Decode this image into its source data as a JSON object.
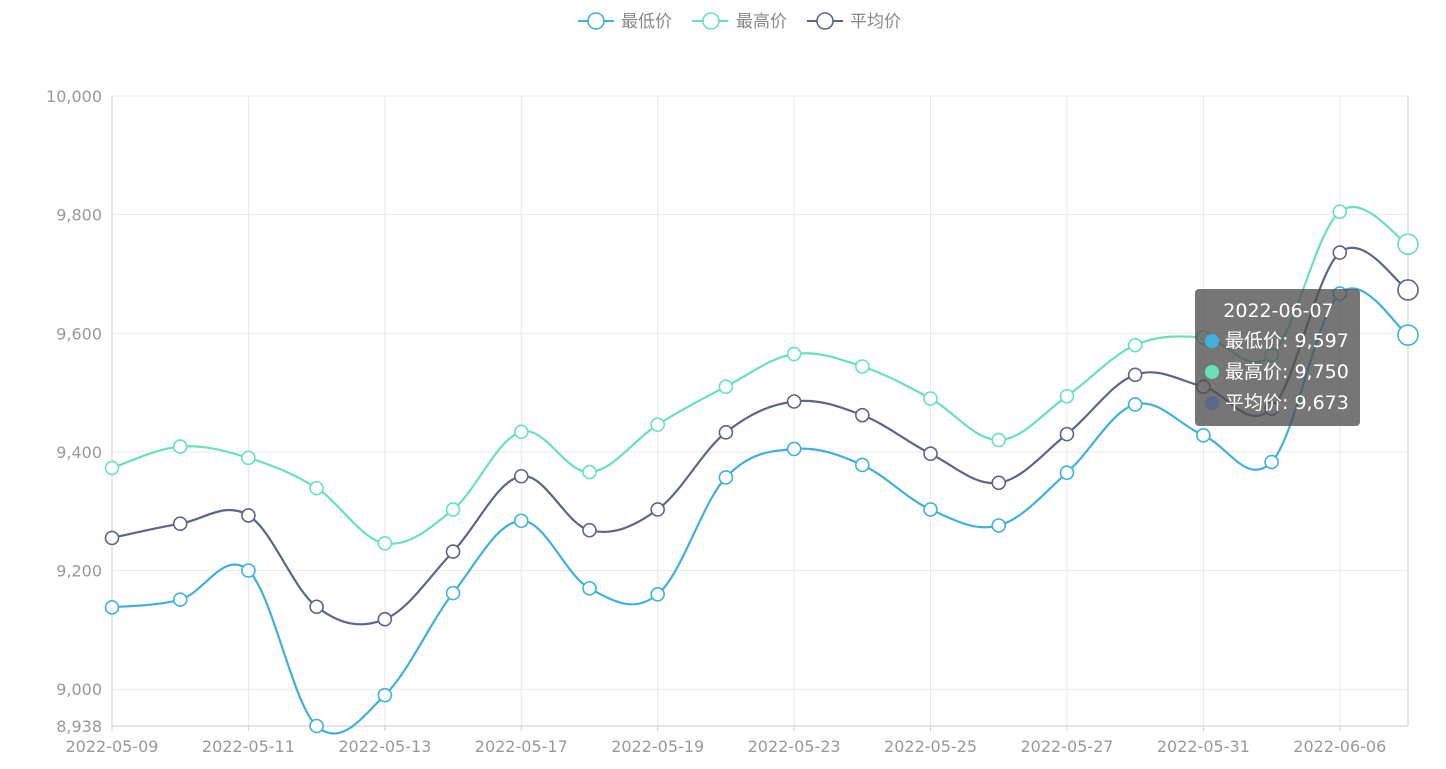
{
  "chart_data": {
    "type": "line",
    "smooth": true,
    "x": [
      "2022-05-09",
      "2022-05-10",
      "2022-05-11",
      "2022-05-12",
      "2022-05-13",
      "2022-05-16",
      "2022-05-17",
      "2022-05-18",
      "2022-05-19",
      "2022-05-20",
      "2022-05-23",
      "2022-05-24",
      "2022-05-25",
      "2022-05-26",
      "2022-05-27",
      "2022-05-30",
      "2022-05-31",
      "2022-06-01",
      "2022-06-06",
      "2022-06-07"
    ],
    "x_tick_labels": [
      "2022-05-09",
      "2022-05-11",
      "2022-05-13",
      "2022-05-17",
      "2022-05-19",
      "2022-05-23",
      "2022-05-25",
      "2022-05-27",
      "2022-05-31",
      "2022-06-06"
    ],
    "ylim": [
      8938,
      10000
    ],
    "y_ticks": [
      {
        "value": 8938,
        "label": "8,938"
      },
      {
        "value": 9000,
        "label": "9,000"
      },
      {
        "value": 9200,
        "label": "9,200"
      },
      {
        "value": 9400,
        "label": "9,400"
      },
      {
        "value": 9600,
        "label": "9,600"
      },
      {
        "value": 9800,
        "label": "9,800"
      },
      {
        "value": 10000,
        "label": "10,000"
      }
    ],
    "grid": true,
    "legend_position": "top-center",
    "series": [
      {
        "name": "最低价",
        "color": "#41b0dd",
        "values": [
          9138,
          9151,
          9200,
          8938,
          8990,
          9162,
          9284,
          9170,
          9160,
          9357,
          9405,
          9378,
          9303,
          9276,
          9365,
          9480,
          9428,
          9383,
          9667,
          9597
        ]
      },
      {
        "name": "最高价",
        "color": "#68e1bb",
        "values": [
          9373,
          9409,
          9390,
          9339,
          9246,
          9303,
          9434,
          9366,
          9446,
          9510,
          9565,
          9544,
          9490,
          9420,
          9494,
          9580,
          9593,
          9563,
          9805,
          9750
        ]
      },
      {
        "name": "平均价",
        "color": "#5b6688",
        "values": [
          9255,
          9279,
          9293,
          9139,
          9118,
          9232,
          9359,
          9268,
          9303,
          9433,
          9485,
          9462,
          9397,
          9348,
          9430,
          9530,
          9510,
          9473,
          9736,
          9673
        ]
      }
    ],
    "tooltip": {
      "title": "2022-06-07",
      "rows": [
        {
          "label": "最低价: 9,597",
          "color": "#41b0dd"
        },
        {
          "label": "最高价: 9,750",
          "color": "#68e1bb"
        },
        {
          "label": "平均价: 9,673",
          "color": "#5b6688"
        }
      ]
    }
  }
}
